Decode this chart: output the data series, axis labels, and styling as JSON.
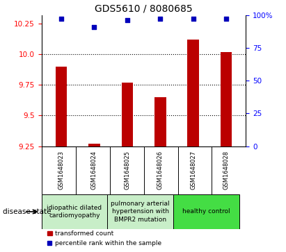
{
  "title": "GDS5610 / 8080685",
  "samples": [
    "GSM1648023",
    "GSM1648024",
    "GSM1648025",
    "GSM1648026",
    "GSM1648027",
    "GSM1648028"
  ],
  "red_values": [
    9.9,
    9.27,
    9.77,
    9.65,
    10.12,
    10.02
  ],
  "blue_values": [
    97,
    91,
    96,
    97,
    97,
    97
  ],
  "ylim_left": [
    9.25,
    10.32
  ],
  "ylim_right": [
    0,
    100
  ],
  "yticks_left": [
    9.25,
    9.5,
    9.75,
    10.0,
    10.25
  ],
  "yticks_right": [
    0,
    25,
    50,
    75,
    100
  ],
  "ytick_labels_right": [
    "0",
    "25",
    "50",
    "75",
    "100%"
  ],
  "dotted_lines": [
    9.5,
    9.75,
    10.0
  ],
  "bar_color": "#bb0000",
  "dot_color": "#0000bb",
  "disease_groups": [
    {
      "label": "idiopathic dilated\ncardiomyopathy",
      "start": 0,
      "end": 1,
      "color": "#c8eec8"
    },
    {
      "label": "pulmonary arterial\nhypertension with\nBMPR2 mutation",
      "start": 2,
      "end": 3,
      "color": "#c8eec8"
    },
    {
      "label": "healthy control",
      "start": 4,
      "end": 5,
      "color": "#44dd44"
    }
  ],
  "legend_red_label": "transformed count",
  "legend_blue_label": "percentile rank within the sample",
  "disease_state_label": "disease state",
  "bar_width": 0.35,
  "sample_bg": "#d0d0d0",
  "background_color": "#ffffff",
  "title_fontsize": 10,
  "tick_fontsize": 7.5,
  "sample_fontsize": 6,
  "disease_fontsize": 6.5,
  "legend_fontsize": 6.5
}
